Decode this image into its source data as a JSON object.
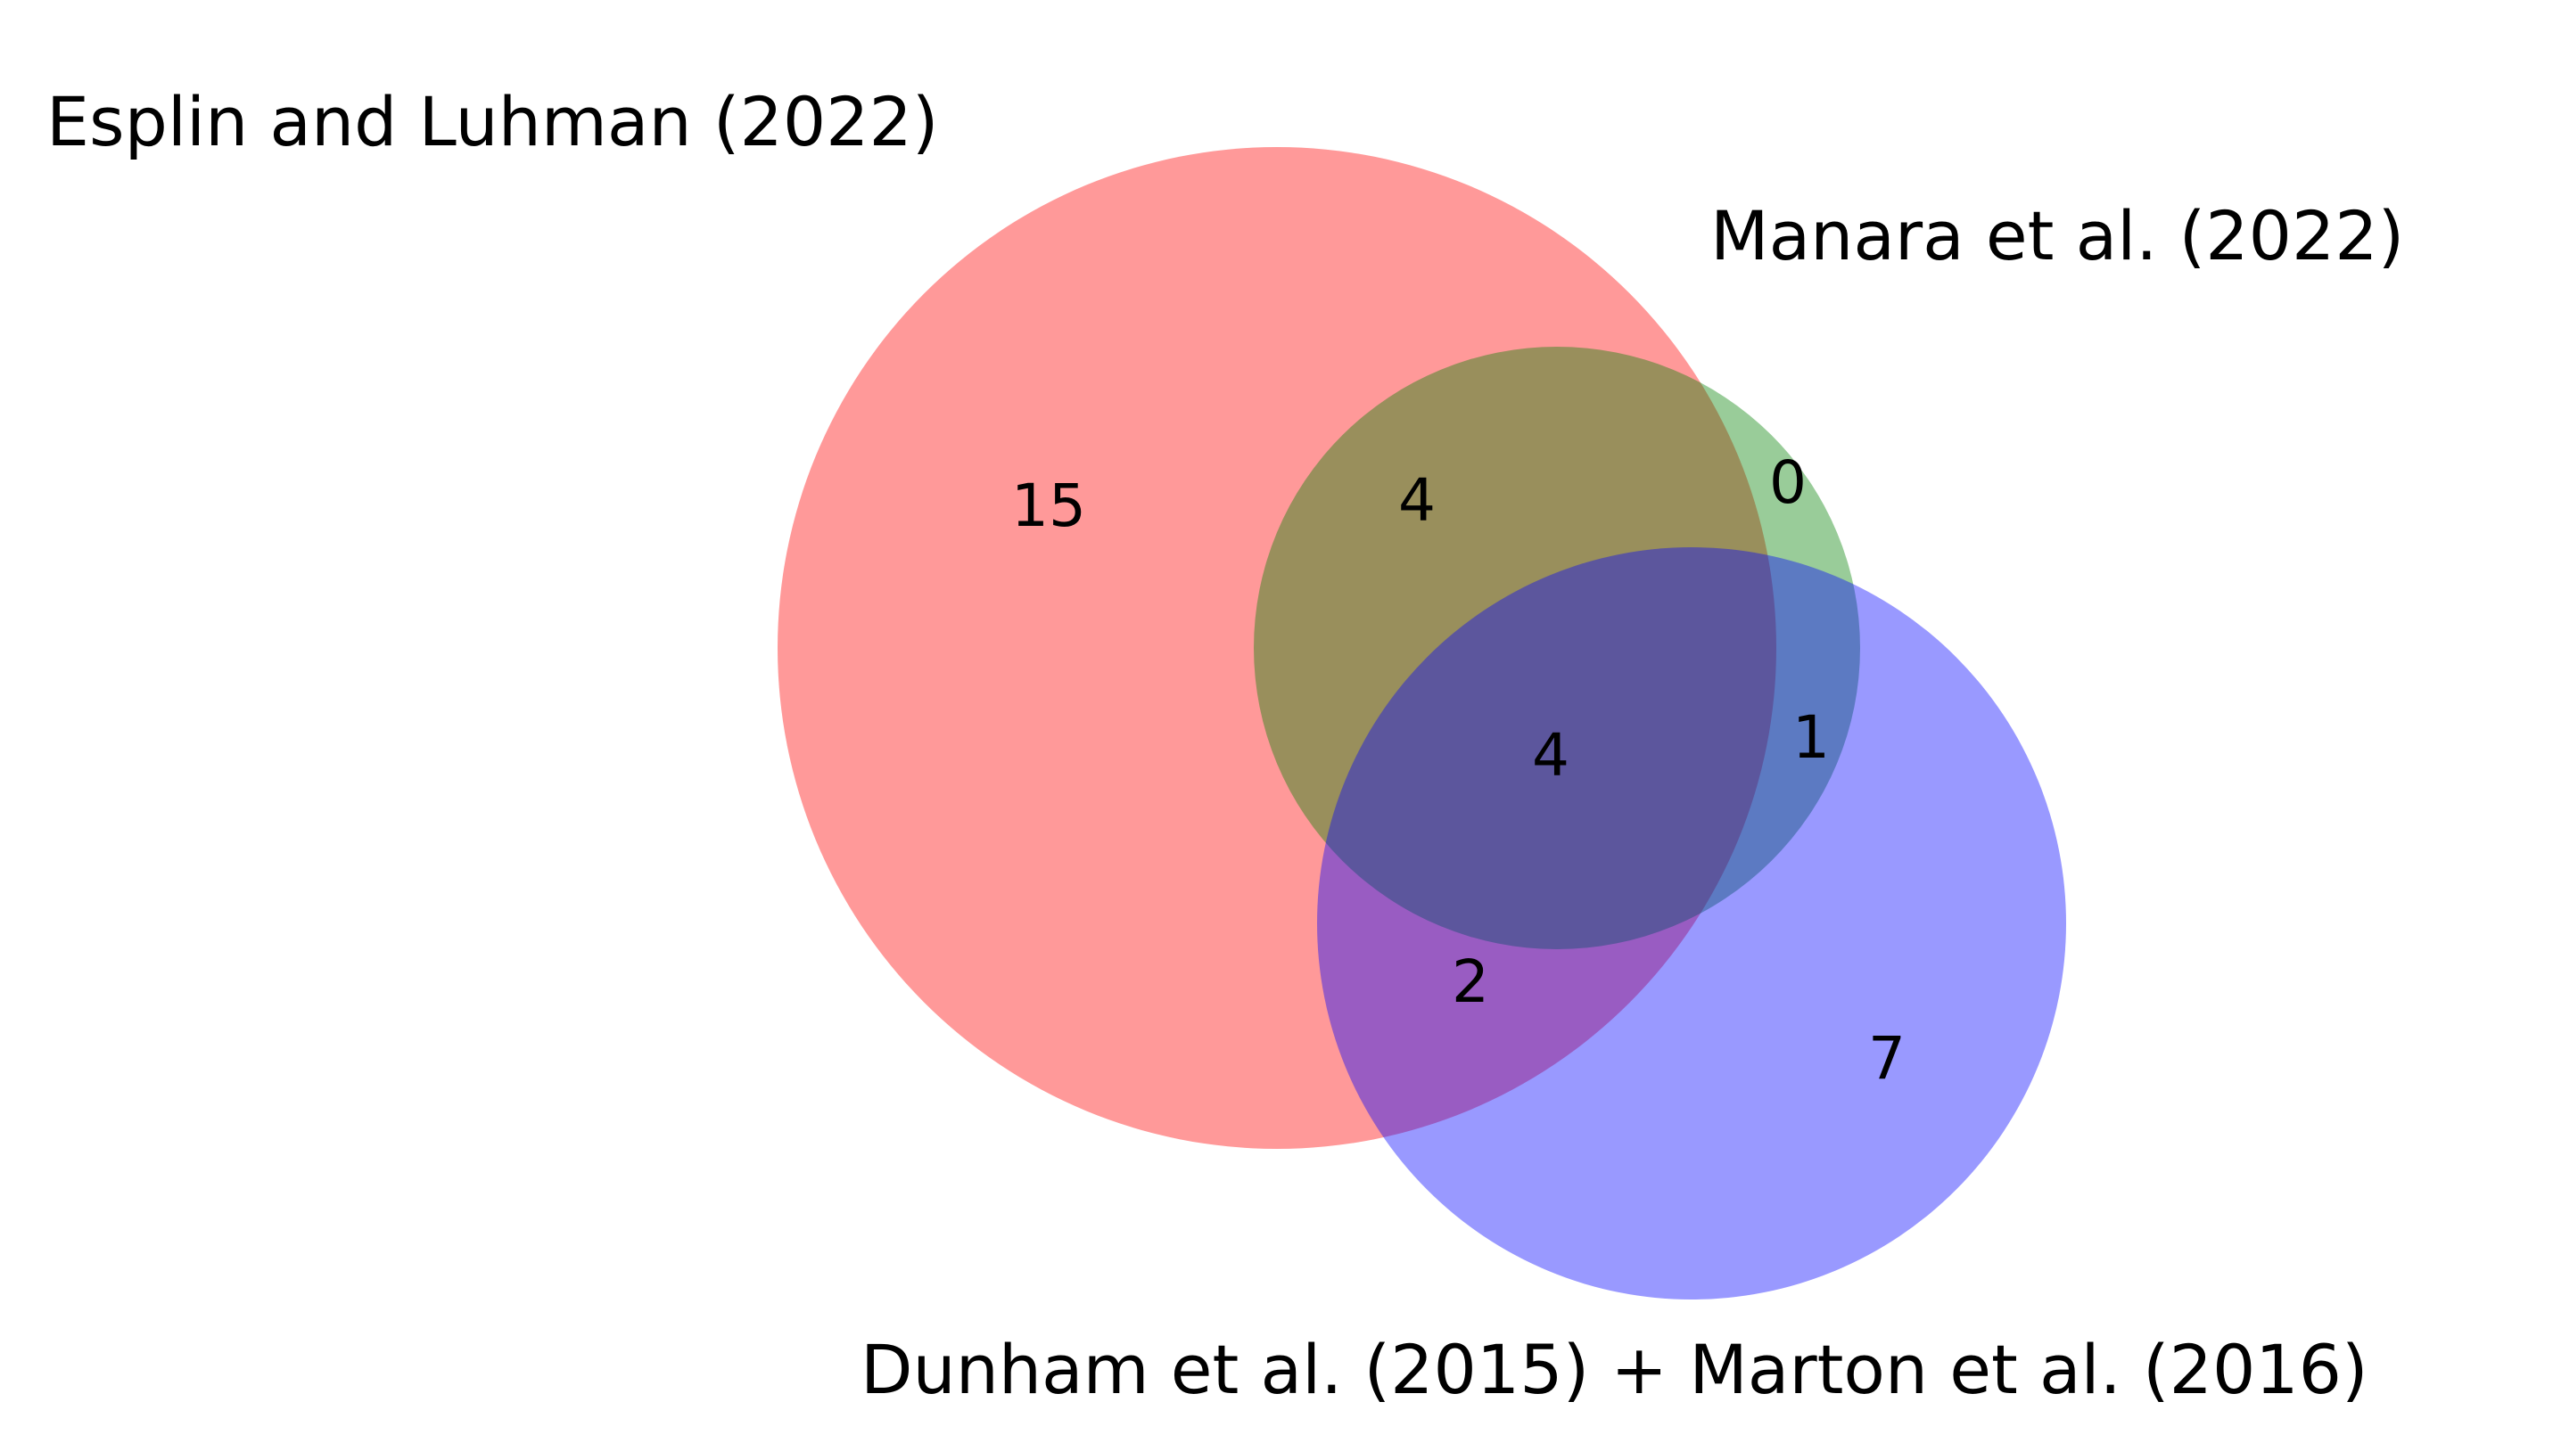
{
  "diagram": {
    "type": "venn3",
    "sets": [
      {
        "name": "Esplin and Luhman (2022)",
        "color": "#ff0000",
        "alpha": 0.4
      },
      {
        "name": "Manara et al. (2022)",
        "color": "#008000",
        "alpha": 0.4
      },
      {
        "name": "Dunham et al. (2015) + Marton et al. (2016)",
        "color": "#0000ff",
        "alpha": 0.4
      }
    ],
    "regions": {
      "esplin_only": "15",
      "manara_only": "0",
      "dunham_marton_only": "7",
      "esplin_and_manara": "4",
      "esplin_and_dunham_marton": "2",
      "manara_and_dunham_marton": "1",
      "all_three": "4"
    }
  }
}
